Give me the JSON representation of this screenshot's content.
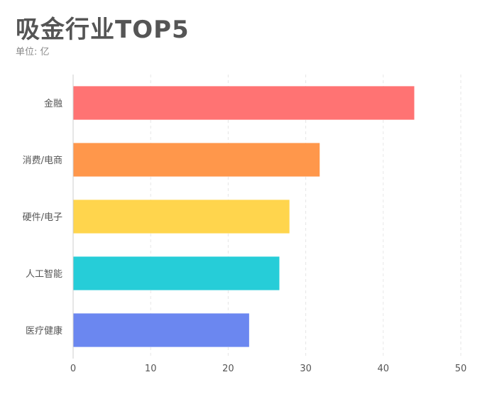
{
  "title": "吸金行业TOP5",
  "subtitle": "单位: 亿",
  "colors": {
    "title": "#555555",
    "subtitle": "#888888",
    "axis": "#cccccc",
    "grid": "#e6e6e6"
  },
  "chart_data": {
    "type": "bar",
    "orientation": "horizontal",
    "title": "吸金行业TOP5",
    "subtitle": "单位: 亿",
    "categories": [
      "金融",
      "消费/电商",
      "硬件/电子",
      "人工智能",
      "医疗健康"
    ],
    "values": [
      44,
      31.8,
      27.9,
      26.6,
      22.7
    ],
    "colors": [
      "#ff7373",
      "#ff974b",
      "#ffd54d",
      "#26cdd8",
      "#6b87f0"
    ],
    "xlim": [
      0,
      50
    ],
    "xticks": [
      0,
      10,
      20,
      30,
      40,
      50
    ],
    "grid": true,
    "grid_style": "dashed-vertical",
    "legend": "none"
  }
}
